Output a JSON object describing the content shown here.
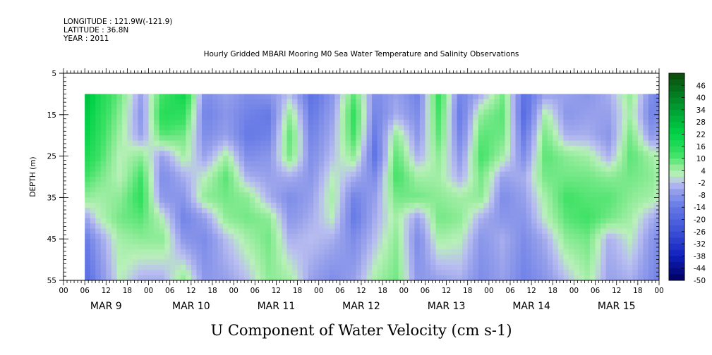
{
  "header": {
    "longitude": "LONGITUDE : 121.9W(-121.9)",
    "latitude": "LATITUDE : 36.8N",
    "year": "YEAR : 2011"
  },
  "chart_data": {
    "type": "heatmap",
    "title": "Hourly Gridded MBARI Mooring M0 Sea Water Temperature and Salinity Observations",
    "xlabel": "U Component of Water Velocity (cm s-1)",
    "ylabel": "DEPTH (m)",
    "ylim": [
      55,
      5
    ],
    "y_ticks": [
      5,
      15,
      25,
      35,
      45,
      55
    ],
    "x_hour_ticks": [
      "00",
      "06",
      "12",
      "18",
      "00",
      "06",
      "12",
      "18",
      "00",
      "06",
      "12",
      "18",
      "00",
      "06",
      "12",
      "18",
      "00",
      "06",
      "12",
      "18",
      "00",
      "06",
      "12",
      "18",
      "00",
      "06",
      "12",
      "18",
      "00"
    ],
    "x_dates": [
      "MAR 9",
      "MAR 10",
      "MAR 11",
      "MAR 12",
      "MAR 13",
      "MAR 14",
      "MAR 15"
    ],
    "x_range_hours": [
      0,
      168
    ],
    "data_start_hour": 6,
    "data_top_depth": 10,
    "colorbar_labels": [
      "46",
      "40",
      "34",
      "28",
      "22",
      "16",
      "10",
      "4",
      "-2",
      "-8",
      "-14",
      "-20",
      "-26",
      "-32",
      "-38",
      "-44",
      "-50"
    ],
    "colorbar_range": [
      -50,
      52
    ],
    "colors": {
      "positive_high": "#0a4a0a",
      "positive_mid": "#00dd44",
      "positive_low": "#b8f0b8",
      "negative_low": "#c0c0f0",
      "negative_mid": "#7080e0",
      "negative_high": "#000060"
    },
    "current_columns": [
      {
        "t": 6,
        "u": [
          28,
          25,
          22,
          18,
          12,
          6,
          -6,
          -14,
          -18
        ]
      },
      {
        "t": 10,
        "u": [
          18,
          16,
          14,
          12,
          8,
          4,
          2,
          -6,
          -10
        ]
      },
      {
        "t": 16,
        "u": [
          8,
          6,
          4,
          2,
          2,
          6,
          8,
          4,
          2
        ]
      },
      {
        "t": 22,
        "u": [
          -6,
          -8,
          -6,
          6,
          12,
          14,
          10,
          6,
          -4
        ]
      },
      {
        "t": 28,
        "u": [
          12,
          16,
          10,
          -6,
          -10,
          -8,
          2,
          6,
          -4
        ]
      },
      {
        "t": 34,
        "u": [
          20,
          14,
          8,
          4,
          -4,
          -8,
          -12,
          -8,
          6
        ]
      },
      {
        "t": 40,
        "u": [
          -10,
          -12,
          -10,
          -6,
          2,
          6,
          -6,
          -10,
          -8
        ]
      },
      {
        "t": 46,
        "u": [
          -6,
          -8,
          -6,
          4,
          10,
          8,
          6,
          -2,
          -6
        ]
      },
      {
        "t": 52,
        "u": [
          -10,
          -12,
          -14,
          -10,
          -4,
          6,
          8,
          4,
          -2
        ]
      },
      {
        "t": 58,
        "u": [
          -8,
          -14,
          -12,
          -8,
          -6,
          -4,
          6,
          8,
          6
        ]
      },
      {
        "t": 64,
        "u": [
          -2,
          6,
          10,
          8,
          -4,
          -10,
          -8,
          -4,
          4
        ]
      },
      {
        "t": 70,
        "u": [
          -16,
          -14,
          -12,
          -10,
          -8,
          -6,
          -4,
          -2,
          -6
        ]
      },
      {
        "t": 76,
        "u": [
          -8,
          -6,
          -4,
          -2,
          2,
          4,
          2,
          -4,
          -10
        ]
      },
      {
        "t": 82,
        "u": [
          10,
          14,
          12,
          6,
          -4,
          -12,
          -14,
          -10,
          -6
        ]
      },
      {
        "t": 88,
        "u": [
          -10,
          -12,
          -14,
          -16,
          -10,
          -6,
          -4,
          -2,
          4
        ]
      },
      {
        "t": 94,
        "u": [
          -6,
          -4,
          6,
          10,
          12,
          8,
          4,
          6,
          8
        ]
      },
      {
        "t": 100,
        "u": [
          -12,
          -10,
          -8,
          -4,
          4,
          8,
          -6,
          -10,
          -8
        ]
      },
      {
        "t": 106,
        "u": [
          14,
          12,
          10,
          6,
          4,
          6,
          8,
          4,
          -6
        ]
      },
      {
        "t": 112,
        "u": [
          -12,
          -14,
          -12,
          -8,
          -4,
          4,
          6,
          2,
          -4
        ]
      },
      {
        "t": 118,
        "u": [
          -4,
          6,
          10,
          12,
          8,
          6,
          -4,
          -8,
          -10
        ]
      },
      {
        "t": 124,
        "u": [
          8,
          10,
          8,
          4,
          -6,
          -10,
          -8,
          -4,
          -6
        ]
      },
      {
        "t": 130,
        "u": [
          -16,
          -18,
          -14,
          -10,
          -4,
          -6,
          -8,
          -10,
          -12
        ]
      },
      {
        "t": 136,
        "u": [
          -6,
          4,
          8,
          10,
          8,
          4,
          2,
          -4,
          -8
        ]
      },
      {
        "t": 142,
        "u": [
          -6,
          -8,
          -4,
          6,
          8,
          12,
          10,
          6,
          -2
        ]
      },
      {
        "t": 148,
        "u": [
          -8,
          -6,
          -4,
          4,
          8,
          10,
          12,
          8,
          4
        ]
      },
      {
        "t": 154,
        "u": [
          -4,
          -6,
          -8,
          -4,
          6,
          10,
          8,
          -4,
          -6
        ]
      },
      {
        "t": 160,
        "u": [
          6,
          4,
          8,
          10,
          8,
          6,
          4,
          2,
          -4
        ]
      },
      {
        "t": 166,
        "u": [
          -10,
          -12,
          -8,
          4,
          6,
          4,
          -4,
          -8,
          -10
        ]
      },
      {
        "t": 168,
        "u": [
          -12,
          -10,
          -6,
          2,
          4,
          2,
          -6,
          -10,
          -12
        ]
      }
    ],
    "column_depths": [
      10,
      15,
      20,
      25,
      30,
      35,
      40,
      45,
      55
    ]
  }
}
